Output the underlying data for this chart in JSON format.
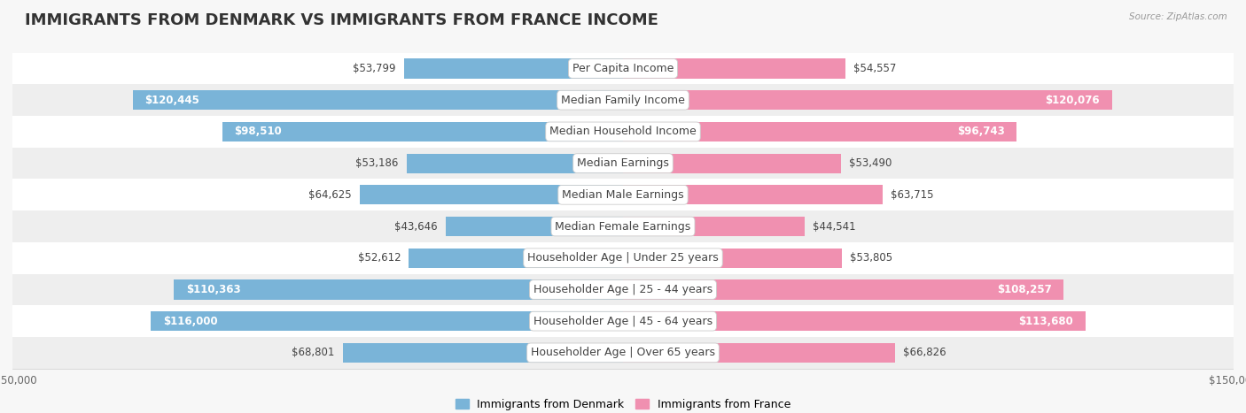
{
  "title": "IMMIGRANTS FROM DENMARK VS IMMIGRANTS FROM FRANCE INCOME",
  "source": "Source: ZipAtlas.com",
  "categories": [
    "Per Capita Income",
    "Median Family Income",
    "Median Household Income",
    "Median Earnings",
    "Median Male Earnings",
    "Median Female Earnings",
    "Householder Age | Under 25 years",
    "Householder Age | 25 - 44 years",
    "Householder Age | 45 - 64 years",
    "Householder Age | Over 65 years"
  ],
  "denmark_values": [
    53799,
    120445,
    98510,
    53186,
    64625,
    43646,
    52612,
    110363,
    116000,
    68801
  ],
  "france_values": [
    54557,
    120076,
    96743,
    53490,
    63715,
    44541,
    53805,
    108257,
    113680,
    66826
  ],
  "denmark_labels": [
    "$53,799",
    "$120,445",
    "$98,510",
    "$53,186",
    "$64,625",
    "$43,646",
    "$52,612",
    "$110,363",
    "$116,000",
    "$68,801"
  ],
  "france_labels": [
    "$54,557",
    "$120,076",
    "$96,743",
    "$53,490",
    "$63,715",
    "$44,541",
    "$53,805",
    "$108,257",
    "$113,680",
    "$66,826"
  ],
  "denmark_color": "#7ab4d8",
  "france_color": "#f090b0",
  "max_value": 150000,
  "background_color": "#f7f7f7",
  "row_colors": [
    "#ffffff",
    "#eeeeee"
  ],
  "title_fontsize": 13,
  "label_fontsize": 8.5,
  "category_fontsize": 9,
  "inner_label_threshold": 75000,
  "legend_labels": [
    "Immigrants from Denmark",
    "Immigrants from France"
  ]
}
